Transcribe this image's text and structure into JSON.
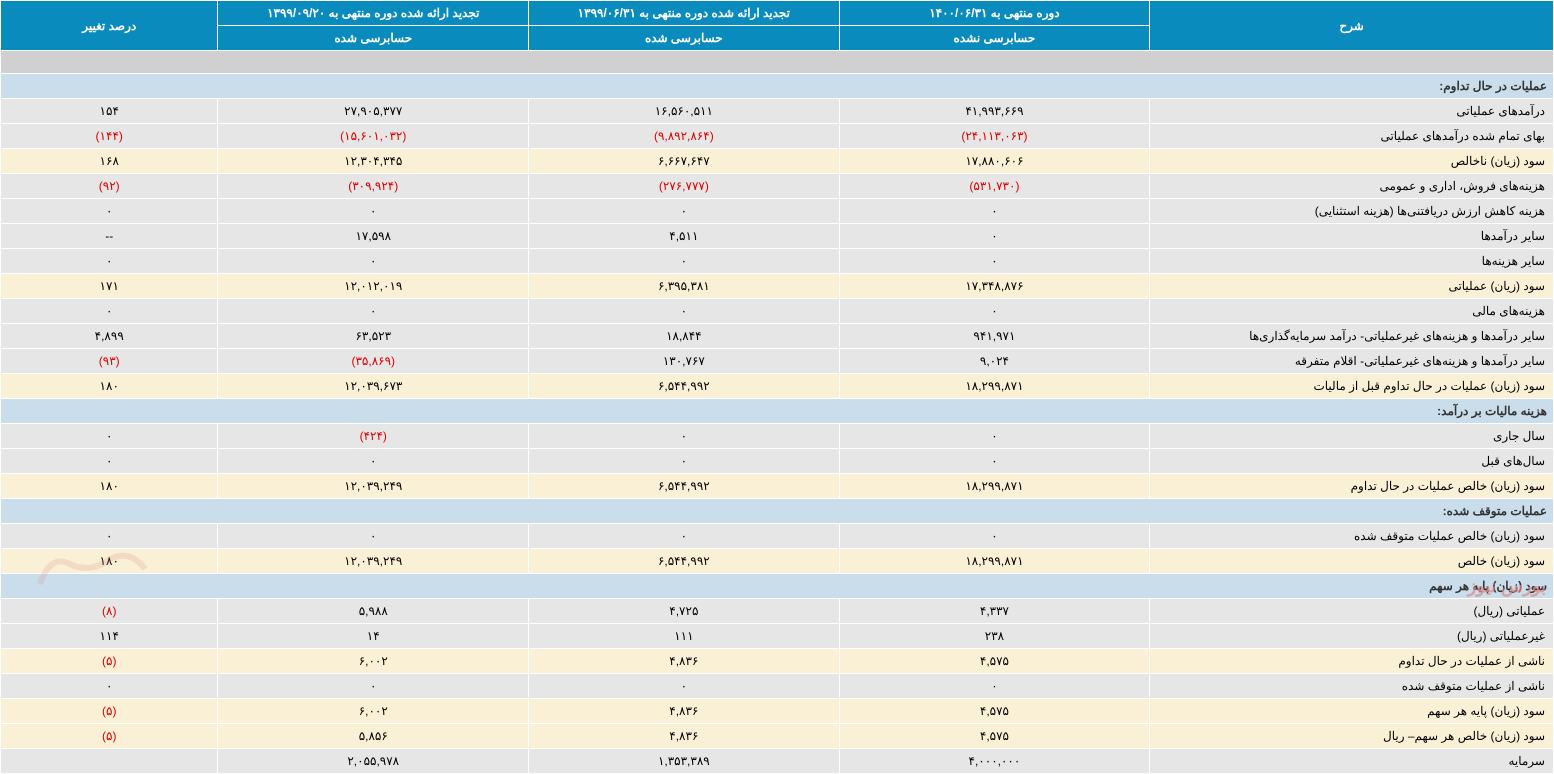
{
  "headers": {
    "desc": "شرح",
    "col1": "دوره منتهی به ۱۴۰۰/۰۶/۳۱",
    "col2": "تجدید ارائه شده دوره منتهی به ۱۳۹۹/۰۶/۳۱",
    "col3": "تجدید ارائه شده دوره منتهی به ۱۳۹۹/۰۹/۲۰",
    "pct": "درصد تغییر",
    "sub1": "حسابرسی نشده",
    "sub2": "حسابرسی شده",
    "sub3": "حسابرسی شده"
  },
  "colors": {
    "header_bg": "#0a8bbd",
    "section_bg": "#c9ddea",
    "alt1_bg": "#e6e6e6",
    "alt2_bg": "#f9f0d5",
    "neg": "#d00"
  },
  "rows": [
    {
      "type": "spacer"
    },
    {
      "type": "section",
      "desc": "عملیات در حال تداوم:"
    },
    {
      "type": "data",
      "cls": "alt1",
      "desc": "درآمدهای عملیاتی",
      "v1": "۴۱,۹۹۳,۶۶۹",
      "v2": "۱۶,۵۶۰,۵۱۱",
      "v3": "۲۷,۹۰۵,۳۷۷",
      "pct": "۱۵۴"
    },
    {
      "type": "data",
      "cls": "alt1",
      "desc": "بهای تمام شده درآمدهای عملیاتی",
      "v1": "(۲۴,۱۱۳,۰۶۳)",
      "v1n": true,
      "v2": "(۹,۸۹۲,۸۶۴)",
      "v2n": true,
      "v3": "(۱۵,۶۰۱,۰۳۲)",
      "v3n": true,
      "pct": "(۱۴۴)",
      "pctn": true
    },
    {
      "type": "data",
      "cls": "alt2",
      "desc": "سود (زیان) ناخالص",
      "v1": "۱۷,۸۸۰,۶۰۶",
      "v2": "۶,۶۶۷,۶۴۷",
      "v3": "۱۲,۳۰۴,۳۴۵",
      "pct": "۱۶۸"
    },
    {
      "type": "data",
      "cls": "alt1",
      "desc": "هزینه‌های فروش، اداری و عمومی",
      "v1": "(۵۳۱,۷۳۰)",
      "v1n": true,
      "v2": "(۲۷۶,۷۷۷)",
      "v2n": true,
      "v3": "(۳۰۹,۹۲۴)",
      "v3n": true,
      "pct": "(۹۲)",
      "pctn": true
    },
    {
      "type": "data",
      "cls": "alt1",
      "desc": "هزینه کاهش ارزش دریافتنی‌ها (هزینه استثنایی)",
      "v1": "۰",
      "v2": "۰",
      "v3": "۰",
      "pct": "۰"
    },
    {
      "type": "data",
      "cls": "alt1",
      "desc": "سایر درآمدها",
      "v1": "۰",
      "v2": "۴,۵۱۱",
      "v3": "۱۷,۵۹۸",
      "pct": "--"
    },
    {
      "type": "data",
      "cls": "alt1",
      "desc": "سایر هزینه‌ها",
      "v1": "۰",
      "v2": "۰",
      "v3": "۰",
      "pct": "۰"
    },
    {
      "type": "data",
      "cls": "alt2",
      "desc": "سود (زیان) عملیاتی",
      "v1": "۱۷,۳۴۸,۸۷۶",
      "v2": "۶,۳۹۵,۳۸۱",
      "v3": "۱۲,۰۱۲,۰۱۹",
      "pct": "۱۷۱"
    },
    {
      "type": "data",
      "cls": "alt1",
      "desc": "هزینه‌های مالی",
      "v1": "۰",
      "v2": "۰",
      "v3": "۰",
      "pct": "۰"
    },
    {
      "type": "data",
      "cls": "alt1",
      "desc": "سایر درآمدها و هزینه‌های غیرعملیاتی- درآمد سرمایه‌گذاری‌ها",
      "v1": "۹۴۱,۹۷۱",
      "v2": "۱۸,۸۴۴",
      "v3": "۶۳,۵۲۳",
      "pct": "۴,۸۹۹"
    },
    {
      "type": "data",
      "cls": "alt1",
      "desc": "سایر درآمدها و هزینه‌های غیرعملیاتی- اقلام متفرقه",
      "v1": "۹,۰۲۴",
      "v2": "۱۳۰,۷۶۷",
      "v3": "(۳۵,۸۶۹)",
      "v3n": true,
      "pct": "(۹۳)",
      "pctn": true
    },
    {
      "type": "data",
      "cls": "alt2",
      "desc": "سود (زیان) عملیات در حال تداوم قبل از مالیات",
      "v1": "۱۸,۲۹۹,۸۷۱",
      "v2": "۶,۵۴۴,۹۹۲",
      "v3": "۱۲,۰۳۹,۶۷۳",
      "pct": "۱۸۰"
    },
    {
      "type": "section",
      "desc": "هزینه مالیات بر درآمد:"
    },
    {
      "type": "data",
      "cls": "alt1",
      "desc": "سال جاری",
      "v1": "۰",
      "v2": "۰",
      "v3": "(۴۲۴)",
      "v3n": true,
      "pct": "۰"
    },
    {
      "type": "data",
      "cls": "alt1",
      "desc": "سال‌های قبل",
      "v1": "۰",
      "v2": "۰",
      "v3": "۰",
      "pct": "۰"
    },
    {
      "type": "data",
      "cls": "alt2",
      "desc": "سود (زیان) خالص عملیات در حال تداوم",
      "v1": "۱۸,۲۹۹,۸۷۱",
      "v2": "۶,۵۴۴,۹۹۲",
      "v3": "۱۲,۰۳۹,۲۴۹",
      "pct": "۱۸۰"
    },
    {
      "type": "section",
      "desc": "عملیات متوقف شده:"
    },
    {
      "type": "data",
      "cls": "alt1",
      "desc": "سود (زیان) خالص عملیات متوقف شده",
      "v1": "۰",
      "v2": "۰",
      "v3": "۰",
      "pct": "۰"
    },
    {
      "type": "data",
      "cls": "alt2",
      "desc": "سود (زیان) خالص",
      "v1": "۱۸,۲۹۹,۸۷۱",
      "v2": "۶,۵۴۴,۹۹۲",
      "v3": "۱۲,۰۳۹,۲۴۹",
      "pct": "۱۸۰"
    },
    {
      "type": "section",
      "desc": "سود (زیان) پایه هر سهم"
    },
    {
      "type": "data",
      "cls": "alt1",
      "desc": "عملیاتی (ریال)",
      "v1": "۴,۳۳۷",
      "v2": "۴,۷۲۵",
      "v3": "۵,۹۸۸",
      "pct": "(۸)",
      "pctn": true
    },
    {
      "type": "data",
      "cls": "alt1",
      "desc": "غیرعملیاتی (ریال)",
      "v1": "۲۳۸",
      "v2": "۱۱۱",
      "v3": "۱۴",
      "pct": "۱۱۴"
    },
    {
      "type": "data",
      "cls": "alt2",
      "desc": "ناشی از عملیات در حال تداوم",
      "v1": "۴,۵۷۵",
      "v2": "۴,۸۳۶",
      "v3": "۶,۰۰۲",
      "pct": "(۵)",
      "pctn": true
    },
    {
      "type": "data",
      "cls": "alt1",
      "desc": "ناشی از عملیات متوقف شده",
      "v1": "۰",
      "v2": "۰",
      "v3": "۰",
      "pct": "۰"
    },
    {
      "type": "data",
      "cls": "alt2",
      "desc": "سود (زیان) پایه هر سهم",
      "v1": "۴,۵۷۵",
      "v2": "۴,۸۳۶",
      "v3": "۶,۰۰۲",
      "pct": "(۵)",
      "pctn": true
    },
    {
      "type": "data",
      "cls": "alt2",
      "desc": "سود (زیان) خالص هر سهم– ریال",
      "v1": "۴,۵۷۵",
      "v2": "۴,۸۳۶",
      "v3": "۵,۸۵۶",
      "pct": "(۵)",
      "pctn": true
    },
    {
      "type": "data",
      "cls": "alt1",
      "desc": "سرمایه",
      "v1": "۴,۰۰۰,۰۰۰",
      "v2": "۱,۳۵۳,۳۸۹",
      "v3": "۲,۰۵۵,۹۷۸",
      "pct": ""
    }
  ],
  "watermark": "بورس نیوز"
}
